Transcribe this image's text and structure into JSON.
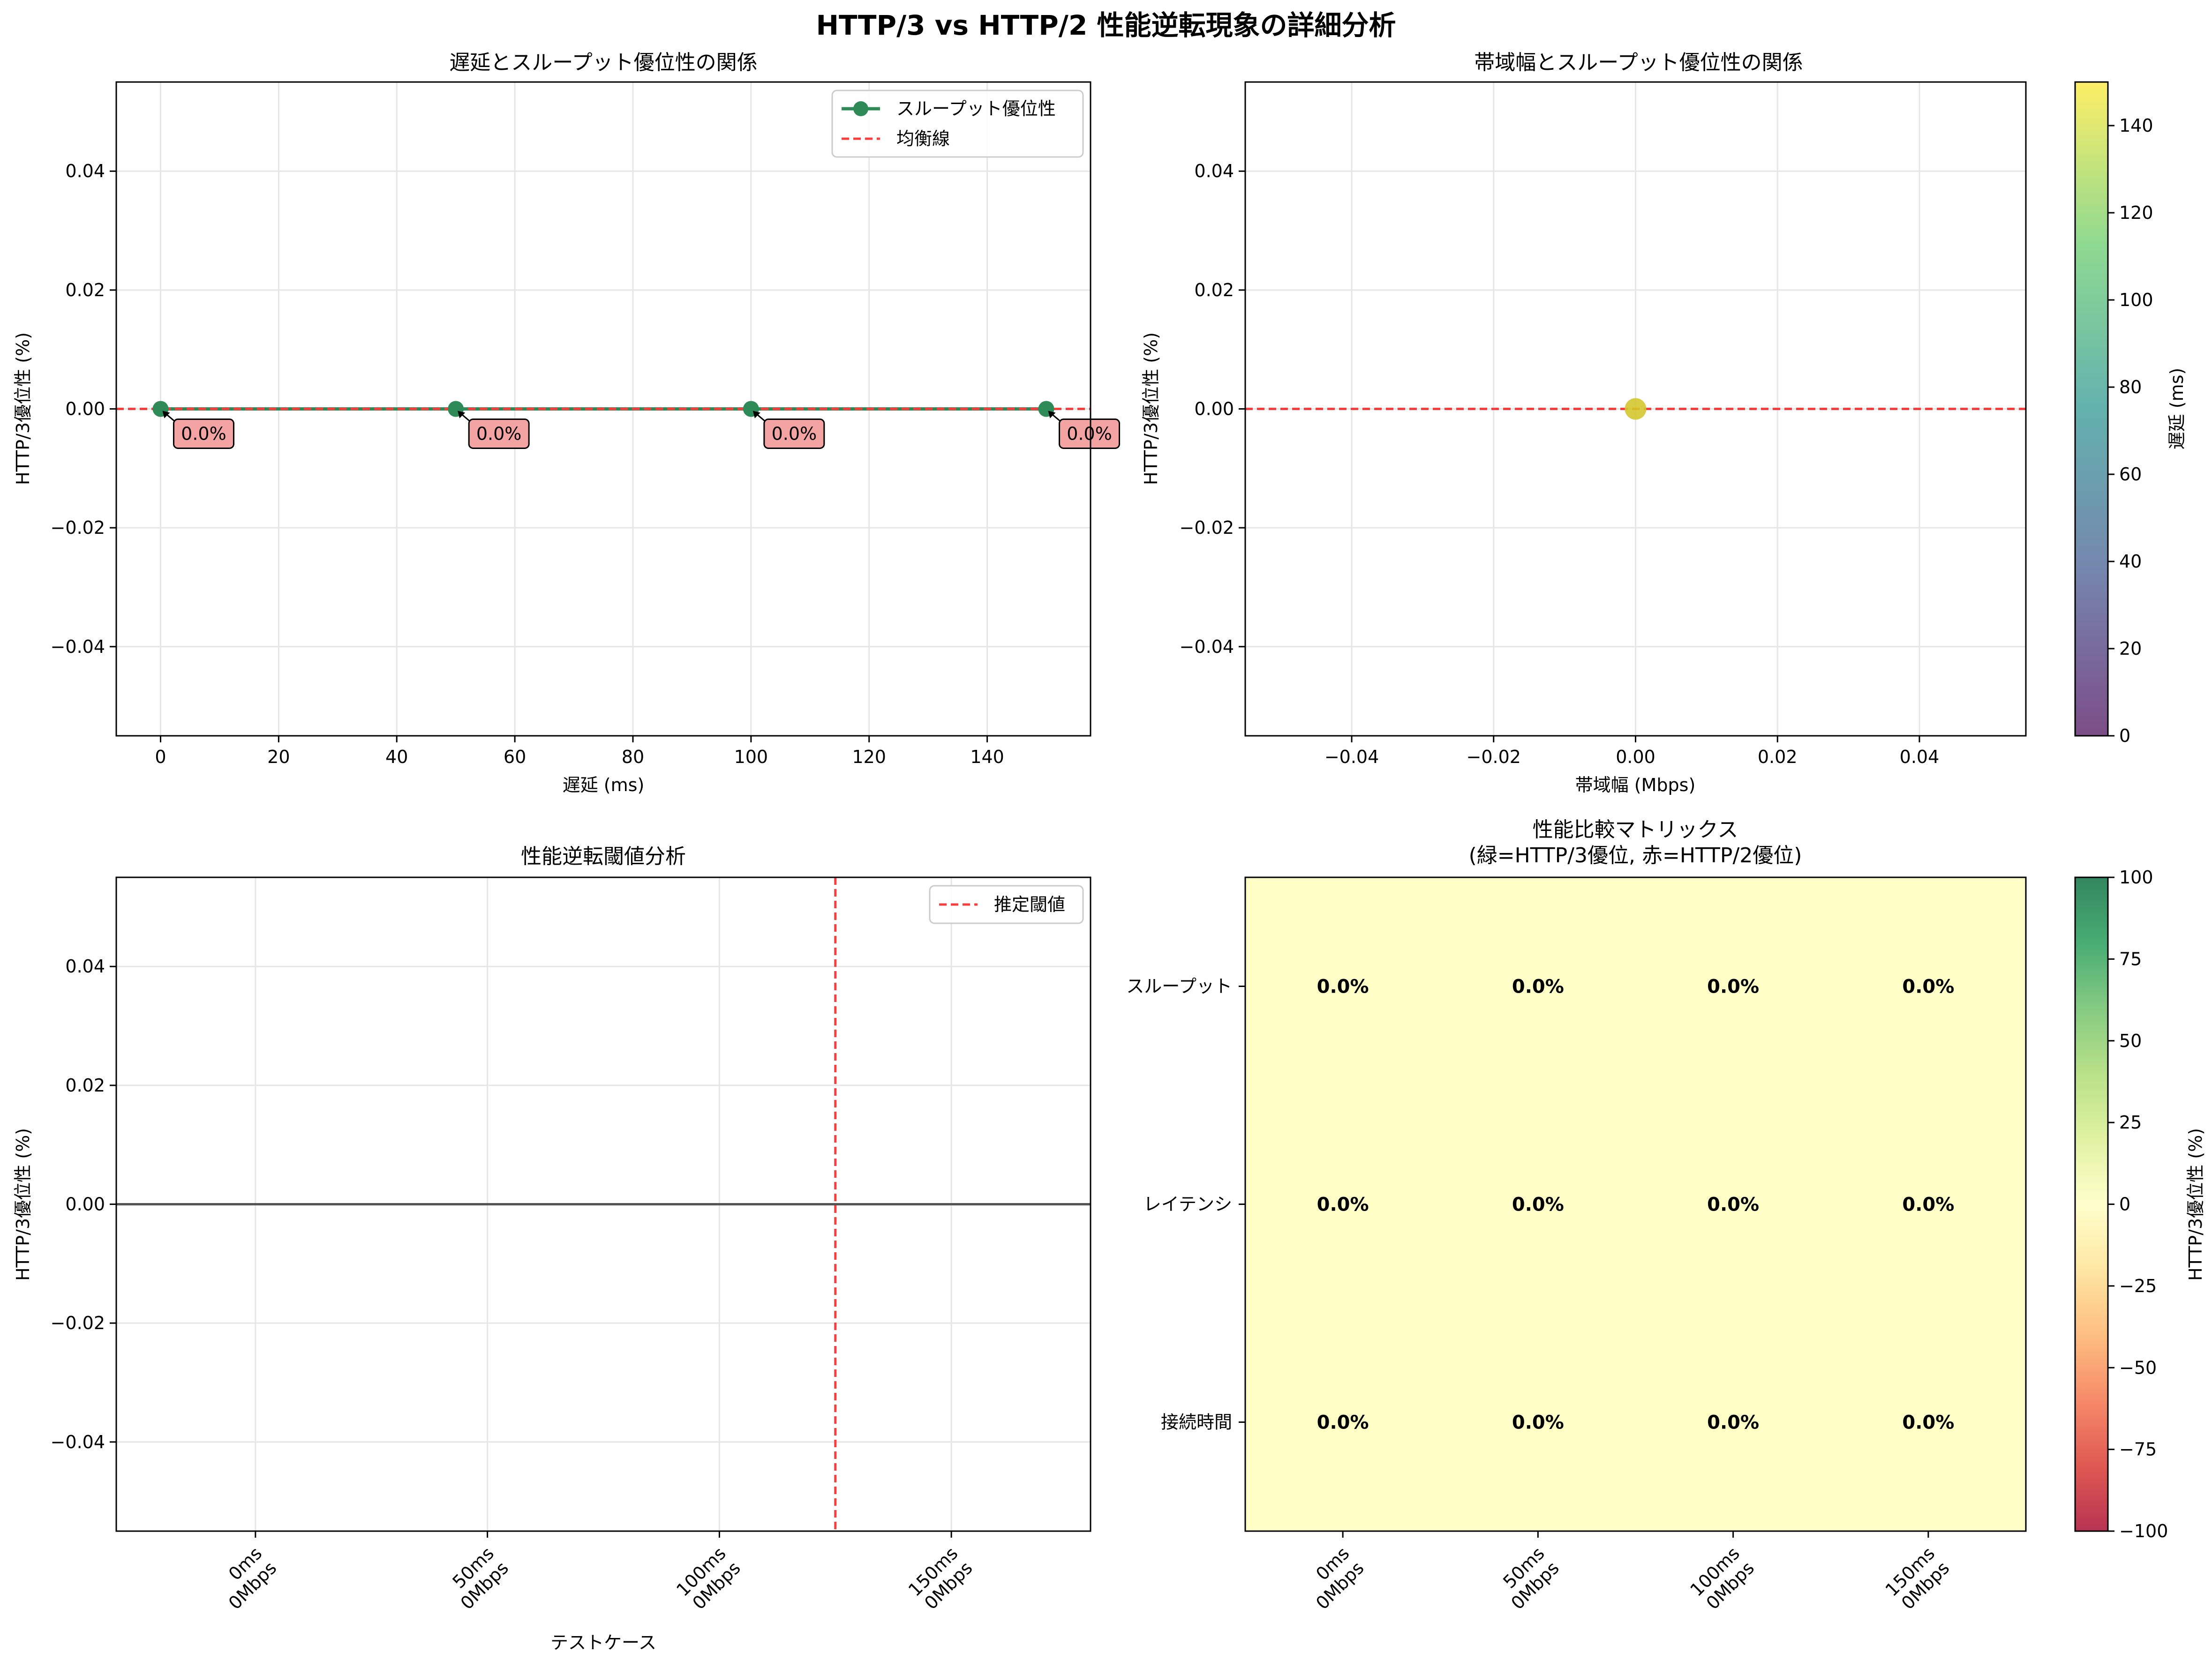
{
  "figure": {
    "suptitle": "HTTP/3 vs HTTP/2 性能逆転現象の詳細分析"
  },
  "colors": {
    "series_green": "#2e8b57",
    "reference_red": "#ff3b3b",
    "annotation_fill": "#f4a3a3",
    "grid": "#e6e6e6",
    "scatter_point": "#d4c82e",
    "heatmap_neutral": "#fefec6"
  },
  "chart_data": [
    {
      "id": "latency",
      "type": "line",
      "title": "遅延とスループット優位性の関係",
      "xlabel": "遅延 (ms)",
      "ylabel": "HTTP/3優位性 (%)",
      "xlim": [
        -7.5,
        157.5
      ],
      "ylim": [
        -0.055,
        0.055
      ],
      "xticks": [
        "0",
        "20",
        "40",
        "60",
        "80",
        "100",
        "120",
        "140"
      ],
      "yticks": [
        "−0.04",
        "−0.02",
        "0.00",
        "0.02",
        "0.04"
      ],
      "grid": true,
      "legend": {
        "placement": "top-right",
        "entries": [
          "スループット優位性",
          "均衡線"
        ]
      },
      "series": [
        {
          "name": "スループット優位性",
          "x": [
            0,
            50,
            100,
            150
          ],
          "y": [
            0,
            0,
            0,
            0
          ],
          "labels": [
            "0.0%",
            "0.0%",
            "0.0%",
            "0.0%"
          ]
        }
      ],
      "reference_line": {
        "name": "均衡線",
        "y": 0
      }
    },
    {
      "id": "bandwidth",
      "type": "scatter",
      "title": "帯域幅とスループット優位性の関係",
      "xlabel": "帯域幅 (Mbps)",
      "ylabel": "HTTP/3優位性 (%)",
      "xlim": [
        -0.055,
        0.055
      ],
      "ylim": [
        -0.055,
        0.055
      ],
      "xticks": [
        "−0.04",
        "−0.02",
        "0.00",
        "0.02",
        "0.04"
      ],
      "yticks": [
        "−0.04",
        "−0.02",
        "0.00",
        "0.02",
        "0.04"
      ],
      "grid": true,
      "points": [
        {
          "x": 0,
          "y": 0,
          "latency_ms": 150
        }
      ],
      "reference_line": {
        "y": 0
      },
      "colorbar": {
        "label": "遅延 (ms)",
        "range": [
          0,
          150
        ],
        "ticks": [
          "0",
          "20",
          "40",
          "60",
          "80",
          "100",
          "120",
          "140"
        ]
      }
    },
    {
      "id": "threshold",
      "type": "bar",
      "title": "性能逆転閾値分析",
      "xlabel": "テストケース",
      "ylabel": "HTTP/3優位性 (%)",
      "ylim": [
        -0.055,
        0.055
      ],
      "yticks": [
        "−0.04",
        "−0.02",
        "0.00",
        "0.02",
        "0.04"
      ],
      "categories": [
        [
          "0ms",
          "0Mbps"
        ],
        [
          "50ms",
          "0Mbps"
        ],
        [
          "100ms",
          "0Mbps"
        ],
        [
          "150ms",
          "0Mbps"
        ]
      ],
      "values": [
        0,
        0,
        0,
        0
      ],
      "threshold": {
        "name": "推定閾値",
        "position": 2.5
      },
      "grid": true,
      "legend": {
        "placement": "top-right",
        "entries": [
          "推定閾値"
        ]
      }
    },
    {
      "id": "matrix",
      "type": "heatmap",
      "title": "性能比較マトリックス",
      "subtitle": "(緑=HTTP/3優位, 赤=HTTP/2優位)",
      "rows": [
        "スループット",
        "レイテンシ",
        "接続時間"
      ],
      "columns": [
        [
          "0ms",
          "0Mbps"
        ],
        [
          "50ms",
          "0Mbps"
        ],
        [
          "100ms",
          "0Mbps"
        ],
        [
          "150ms",
          "0Mbps"
        ]
      ],
      "values": [
        [
          0,
          0,
          0,
          0
        ],
        [
          0,
          0,
          0,
          0
        ],
        [
          0,
          0,
          0,
          0
        ]
      ],
      "cell_labels": [
        [
          "0.0%",
          "0.0%",
          "0.0%",
          "0.0%"
        ],
        [
          "0.0%",
          "0.0%",
          "0.0%",
          "0.0%"
        ],
        [
          "0.0%",
          "0.0%",
          "0.0%",
          "0.0%"
        ]
      ],
      "colorbar": {
        "label": "HTTP/3優位性 (%)",
        "range": [
          -100,
          100
        ],
        "ticks": [
          "−100",
          "−75",
          "−50",
          "−25",
          "0",
          "25",
          "50",
          "75",
          "100"
        ]
      }
    }
  ]
}
